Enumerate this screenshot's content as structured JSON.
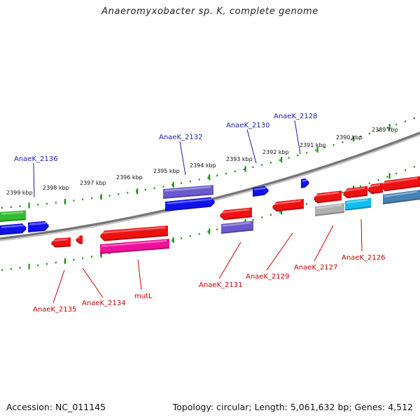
{
  "title": "Anaeromyxobacter sp. K, complete genome",
  "footer": {
    "accession": "Accession: NC_011145",
    "topology": "Topology: circular; Length: 5,061,632 bp; Genes: 4,512"
  },
  "scale": {
    "labels": [
      "2399 kbp",
      "2398 kbp",
      "2397 kbp",
      "2396 kbp",
      "2395 kbp",
      "2394 kbp",
      "2393 kbp",
      "2392 kbp",
      "2391 kbp",
      "2390 kbp",
      "2389 kbp"
    ]
  },
  "colors": {
    "backbone": "#777777",
    "tick": "#228b22",
    "top_label": "#1a1aa6",
    "bottom_label": "#cc0000"
  },
  "gene_labels": {
    "top": [
      "AnaeK_2136",
      "AnaeK_2132",
      "AnaeK_2130",
      "AnaeK_2128"
    ],
    "bottom": [
      "AnaeK_2135",
      "AnaeK_2134",
      "mutL",
      "AnaeK_2131",
      "AnaeK_2129",
      "AnaeK_2127",
      "AnaeK_2126"
    ]
  },
  "gene_colors": {
    "red": "#ee1111",
    "blue": "#1111ee",
    "purple": "#6a5acd",
    "green": "#33bb33",
    "magenta": "#ee1199",
    "silver": "#b0b0b0",
    "cyan": "#11bbee",
    "steel": "#4682b4"
  }
}
